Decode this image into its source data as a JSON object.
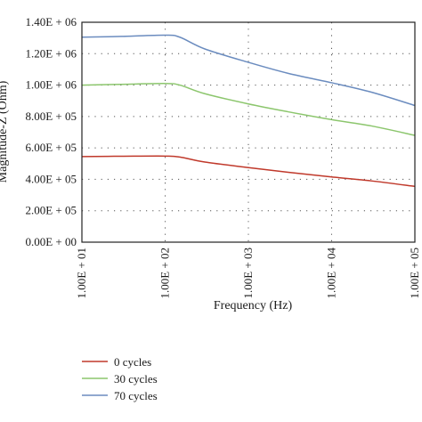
{
  "chart_data": {
    "type": "line",
    "xlabel": "Frequency (Hz)",
    "ylabel": "Magnitude-Z (Ohm)",
    "x_scale": "log",
    "xlim": [
      10,
      100000
    ],
    "ylim": [
      0,
      1400000
    ],
    "grid": true,
    "legend_position": "bottom-left",
    "x_ticks": [
      {
        "value": 10,
        "label": "1.00E + 01"
      },
      {
        "value": 100,
        "label": "1.00E + 02"
      },
      {
        "value": 1000,
        "label": "1.00E + 03"
      },
      {
        "value": 10000,
        "label": "1.00E + 04"
      },
      {
        "value": 100000,
        "label": "1.00E + 05"
      }
    ],
    "y_ticks": [
      {
        "value": 0,
        "label": "0.00E + 00"
      },
      {
        "value": 200000,
        "label": "2.00E + 05"
      },
      {
        "value": 400000,
        "label": "4.00E + 05"
      },
      {
        "value": 600000,
        "label": "6.00E + 05"
      },
      {
        "value": 800000,
        "label": "8.00E + 05"
      },
      {
        "value": 1000000,
        "label": "1.00E + 06"
      },
      {
        "value": 1200000,
        "label": "1.20E + 06"
      },
      {
        "value": 1400000,
        "label": "1.40E + 06"
      }
    ],
    "series": [
      {
        "name": "0 cycles",
        "color": "#c0392b",
        "points": [
          [
            10,
            545000
          ],
          [
            30,
            547000
          ],
          [
            100,
            548000
          ],
          [
            150,
            542000
          ],
          [
            300,
            510000
          ],
          [
            1000,
            475000
          ],
          [
            3000,
            445000
          ],
          [
            10000,
            415000
          ],
          [
            30000,
            390000
          ],
          [
            100000,
            355000
          ]
        ]
      },
      {
        "name": "30 cycles",
        "color": "#8cc66d",
        "points": [
          [
            10,
            1000000
          ],
          [
            30,
            1005000
          ],
          [
            100,
            1010000
          ],
          [
            150,
            1000000
          ],
          [
            300,
            945000
          ],
          [
            1000,
            880000
          ],
          [
            3000,
            830000
          ],
          [
            10000,
            780000
          ],
          [
            30000,
            740000
          ],
          [
            100000,
            680000
          ]
        ]
      },
      {
        "name": "70 cycles",
        "color": "#6b8cbf",
        "points": [
          [
            10,
            1305000
          ],
          [
            30,
            1310000
          ],
          [
            100,
            1318000
          ],
          [
            150,
            1305000
          ],
          [
            300,
            1230000
          ],
          [
            1000,
            1145000
          ],
          [
            3000,
            1075000
          ],
          [
            10000,
            1015000
          ],
          [
            30000,
            955000
          ],
          [
            100000,
            870000
          ]
        ]
      }
    ]
  }
}
